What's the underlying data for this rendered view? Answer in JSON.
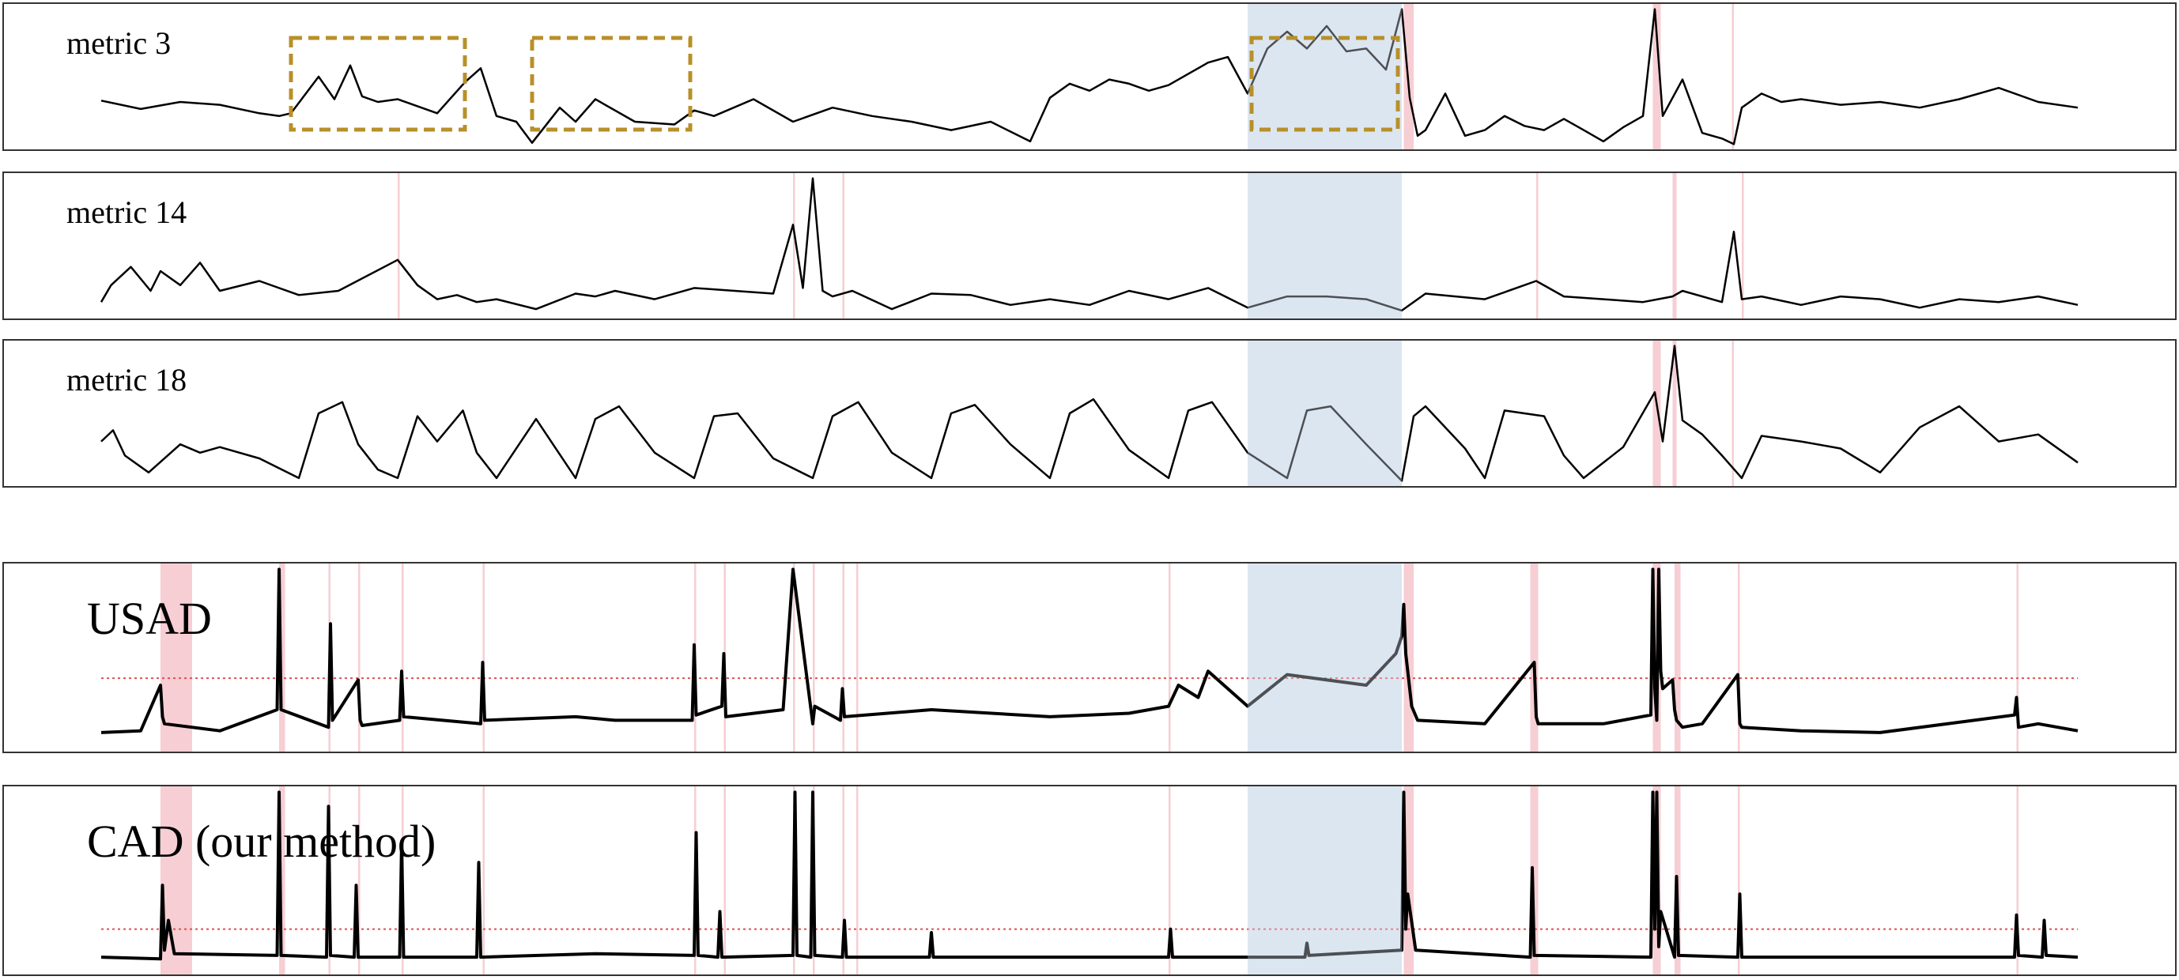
{
  "figure": {
    "shared_x_range": [
      0,
      1000
    ],
    "colors": {
      "series_line": "#000000",
      "expert_band": "#dce6f2",
      "anomaly_band": "#f4c5cb",
      "threshold_line": "#e05050",
      "highlight_box": "#b8902a",
      "panel_border": "#333333"
    },
    "legend": "none",
    "grid": false
  },
  "chart_data": [
    {
      "type": "line",
      "panel_label": "metric 3",
      "ylim": [
        0,
        1
      ],
      "expert_regions": [
        [
          580,
          658
        ]
      ],
      "anomaly_regions": [
        [
          659,
          664
        ],
        [
          785,
          789
        ],
        [
          825,
          826
        ]
      ],
      "highlight_boxes": [
        [
          96,
          184
        ],
        [
          218,
          298
        ],
        [
          582,
          656
        ]
      ],
      "series": [
        {
          "x": [
            0,
            20,
            40,
            60,
            80,
            90,
            96,
            110,
            118,
            126,
            132,
            140,
            150,
            170,
            184,
            192,
            200,
            210,
            218,
            232,
            240,
            250,
            270,
            290,
            300,
            310,
            330,
            350,
            370,
            390,
            410,
            430,
            450,
            470,
            480,
            490,
            500,
            510,
            520,
            530,
            540,
            550,
            560,
            570,
            580,
            590,
            600,
            610,
            620,
            630,
            640,
            650,
            658,
            662,
            666,
            670,
            680,
            690,
            700,
            710,
            720,
            730,
            740,
            750,
            760,
            770,
            780,
            786,
            790,
            800,
            810,
            820,
            826,
            830,
            840,
            850,
            860,
            880,
            900,
            920,
            940,
            960,
            980,
            1000
          ],
          "values": [
            0.33,
            0.27,
            0.32,
            0.3,
            0.24,
            0.22,
            0.24,
            0.5,
            0.34,
            0.58,
            0.36,
            0.32,
            0.34,
            0.24,
            0.46,
            0.56,
            0.22,
            0.18,
            0.03,
            0.28,
            0.18,
            0.34,
            0.18,
            0.16,
            0.26,
            0.22,
            0.34,
            0.18,
            0.28,
            0.22,
            0.18,
            0.12,
            0.18,
            0.04,
            0.35,
            0.45,
            0.4,
            0.48,
            0.45,
            0.4,
            0.44,
            0.52,
            0.6,
            0.64,
            0.38,
            0.7,
            0.82,
            0.7,
            0.86,
            0.68,
            0.7,
            0.55,
            0.98,
            0.35,
            0.08,
            0.12,
            0.38,
            0.08,
            0.12,
            0.22,
            0.15,
            0.12,
            0.2,
            0.12,
            0.04,
            0.14,
            0.22,
            0.98,
            0.22,
            0.48,
            0.1,
            0.06,
            0.02,
            0.28,
            0.38,
            0.32,
            0.34,
            0.3,
            0.32,
            0.28,
            0.34,
            0.42,
            0.32,
            0.28
          ]
        }
      ]
    },
    {
      "type": "line",
      "panel_label": "metric 14",
      "ylim": [
        0,
        1
      ],
      "expert_regions": [
        [
          580,
          658
        ]
      ],
      "anomaly_regions": [
        [
          150,
          151
        ],
        [
          350,
          351
        ],
        [
          375,
          376
        ],
        [
          726,
          727
        ],
        [
          795,
          797
        ],
        [
          830,
          831
        ]
      ],
      "series": [
        {
          "x": [
            0,
            5,
            15,
            25,
            30,
            40,
            50,
            60,
            80,
            100,
            120,
            150,
            160,
            170,
            180,
            190,
            200,
            220,
            240,
            250,
            260,
            280,
            300,
            340,
            350,
            355,
            360,
            365,
            370,
            380,
            400,
            420,
            440,
            460,
            480,
            500,
            520,
            540,
            560,
            580,
            600,
            620,
            640,
            658,
            670,
            700,
            726,
            740,
            760,
            780,
            795,
            800,
            820,
            826,
            830,
            840,
            860,
            880,
            900,
            920,
            940,
            960,
            980,
            1000
          ],
          "values": [
            0.1,
            0.22,
            0.35,
            0.18,
            0.32,
            0.22,
            0.38,
            0.18,
            0.25,
            0.15,
            0.18,
            0.4,
            0.22,
            0.12,
            0.15,
            0.1,
            0.12,
            0.05,
            0.16,
            0.14,
            0.18,
            0.12,
            0.2,
            0.16,
            0.65,
            0.2,
            0.98,
            0.18,
            0.14,
            0.18,
            0.05,
            0.16,
            0.15,
            0.08,
            0.12,
            0.08,
            0.18,
            0.12,
            0.2,
            0.06,
            0.14,
            0.14,
            0.12,
            0.04,
            0.16,
            0.12,
            0.25,
            0.14,
            0.12,
            0.1,
            0.14,
            0.18,
            0.1,
            0.6,
            0.12,
            0.14,
            0.08,
            0.14,
            0.12,
            0.06,
            0.12,
            0.1,
            0.14,
            0.08
          ]
        }
      ]
    },
    {
      "type": "line",
      "panel_label": "metric 18",
      "ylim": [
        0,
        1
      ],
      "expert_regions": [
        [
          580,
          658
        ]
      ],
      "anomaly_regions": [
        [
          785,
          789
        ],
        [
          795,
          797
        ],
        [
          825,
          826
        ]
      ],
      "series": [
        {
          "x": [
            0,
            6,
            12,
            24,
            40,
            50,
            60,
            80,
            100,
            110,
            122,
            130,
            140,
            150,
            160,
            170,
            183,
            190,
            200,
            220,
            240,
            250,
            262,
            280,
            300,
            310,
            322,
            340,
            360,
            370,
            383,
            400,
            420,
            430,
            442,
            460,
            480,
            490,
            502,
            520,
            540,
            550,
            562,
            580,
            600,
            610,
            622,
            640,
            658,
            664,
            670,
            690,
            700,
            710,
            730,
            740,
            750,
            770,
            786,
            790,
            796,
            800,
            810,
            820,
            830,
            840,
            860,
            880,
            900,
            920,
            940,
            960,
            980,
            1000
          ],
          "values": [
            0.3,
            0.38,
            0.2,
            0.08,
            0.28,
            0.22,
            0.26,
            0.18,
            0.04,
            0.5,
            0.58,
            0.28,
            0.1,
            0.04,
            0.48,
            0.3,
            0.52,
            0.22,
            0.04,
            0.46,
            0.04,
            0.46,
            0.55,
            0.22,
            0.04,
            0.48,
            0.5,
            0.18,
            0.04,
            0.48,
            0.58,
            0.22,
            0.04,
            0.5,
            0.56,
            0.28,
            0.04,
            0.5,
            0.6,
            0.24,
            0.04,
            0.52,
            0.58,
            0.22,
            0.04,
            0.52,
            0.55,
            0.28,
            0.02,
            0.48,
            0.55,
            0.25,
            0.04,
            0.52,
            0.48,
            0.2,
            0.04,
            0.26,
            0.65,
            0.3,
            0.98,
            0.45,
            0.35,
            0.2,
            0.04,
            0.34,
            0.3,
            0.25,
            0.08,
            0.4,
            0.55,
            0.3,
            0.35,
            0.15
          ]
        }
      ]
    },
    {
      "type": "line",
      "panel_label": "USAD",
      "ylim": [
        0,
        1
      ],
      "threshold": 0.36,
      "expert_regions": [
        [
          580,
          658
        ]
      ],
      "anomaly_regions": [
        [
          30,
          46
        ],
        [
          90,
          93
        ],
        [
          115,
          116
        ],
        [
          130,
          131
        ],
        [
          152,
          153
        ],
        [
          193,
          194
        ],
        [
          300,
          301
        ],
        [
          315,
          316
        ],
        [
          350,
          351
        ],
        [
          360,
          361
        ],
        [
          375,
          376
        ],
        [
          382,
          383
        ],
        [
          540,
          541
        ],
        [
          659,
          664
        ],
        [
          723,
          727
        ],
        [
          785,
          789
        ],
        [
          796,
          799
        ],
        [
          828,
          829
        ],
        [
          969,
          970
        ]
      ],
      "series": [
        {
          "x": [
            0,
            20,
            30,
            31,
            32,
            60,
            89,
            90,
            91,
            115,
            116,
            117,
            130,
            131,
            132,
            151,
            152,
            153,
            192,
            193,
            194,
            240,
            260,
            299,
            300,
            301,
            314,
            315,
            316,
            345,
            350,
            360,
            361,
            374,
            375,
            376,
            420,
            480,
            520,
            540,
            545,
            555,
            560,
            580,
            600,
            640,
            655,
            658,
            659,
            660,
            663,
            666,
            700,
            725,
            726,
            727,
            760,
            784,
            785,
            786,
            787,
            788,
            789,
            790,
            795,
            796,
            797,
            800,
            810,
            828,
            829,
            830,
            860,
            900,
            968,
            969,
            970,
            980,
            1000
          ],
          "values": [
            0.05,
            0.06,
            0.32,
            0.14,
            0.1,
            0.06,
            0.18,
            0.98,
            0.18,
            0.08,
            0.67,
            0.12,
            0.35,
            0.12,
            0.09,
            0.12,
            0.4,
            0.14,
            0.1,
            0.45,
            0.12,
            0.14,
            0.12,
            0.12,
            0.55,
            0.15,
            0.2,
            0.5,
            0.14,
            0.18,
            0.98,
            0.1,
            0.2,
            0.12,
            0.3,
            0.14,
            0.18,
            0.14,
            0.16,
            0.2,
            0.32,
            0.25,
            0.4,
            0.2,
            0.38,
            0.32,
            0.5,
            0.6,
            0.78,
            0.5,
            0.2,
            0.12,
            0.1,
            0.45,
            0.14,
            0.1,
            0.1,
            0.15,
            0.98,
            0.3,
            0.12,
            0.98,
            0.4,
            0.3,
            0.35,
            0.18,
            0.12,
            0.08,
            0.1,
            0.38,
            0.1,
            0.08,
            0.06,
            0.05,
            0.15,
            0.25,
            0.08,
            0.1,
            0.06
          ]
        }
      ]
    },
    {
      "type": "line",
      "panel_label": "CAD (our method)",
      "ylim": [
        0,
        1
      ],
      "threshold": 0.2,
      "expert_regions": [
        [
          580,
          658
        ]
      ],
      "anomaly_regions": [
        [
          30,
          46
        ],
        [
          90,
          93
        ],
        [
          115,
          116
        ],
        [
          130,
          131
        ],
        [
          152,
          153
        ],
        [
          193,
          194
        ],
        [
          300,
          301
        ],
        [
          315,
          316
        ],
        [
          350,
          351
        ],
        [
          360,
          361
        ],
        [
          375,
          376
        ],
        [
          382,
          383
        ],
        [
          540,
          541
        ],
        [
          659,
          664
        ],
        [
          723,
          727
        ],
        [
          785,
          789
        ],
        [
          796,
          799
        ],
        [
          828,
          829
        ],
        [
          969,
          970
        ]
      ],
      "series": [
        {
          "x": [
            0,
            30,
            31,
            32,
            34,
            37,
            89,
            90,
            91,
            114,
            115,
            116,
            128,
            129,
            130,
            151,
            152,
            153,
            190,
            191,
            192,
            250,
            300,
            301,
            302,
            312,
            313,
            314,
            350,
            351,
            352,
            359,
            360,
            361,
            375,
            376,
            377,
            419,
            420,
            421,
            540,
            541,
            542,
            609,
            610,
            611,
            658,
            659,
            660,
            661,
            665,
            723,
            724,
            725,
            784,
            785,
            786,
            787,
            788,
            789,
            796,
            797,
            798,
            828,
            829,
            830,
            968,
            969,
            970,
            982,
            983,
            984,
            1000
          ],
          "values": [
            0.04,
            0.03,
            0.45,
            0.08,
            0.25,
            0.06,
            0.05,
            0.98,
            0.05,
            0.04,
            0.9,
            0.05,
            0.04,
            0.45,
            0.04,
            0.04,
            0.7,
            0.04,
            0.04,
            0.58,
            0.04,
            0.06,
            0.05,
            0.75,
            0.05,
            0.04,
            0.3,
            0.04,
            0.05,
            0.98,
            0.05,
            0.04,
            0.98,
            0.05,
            0.04,
            0.25,
            0.04,
            0.04,
            0.18,
            0.04,
            0.04,
            0.2,
            0.04,
            0.04,
            0.12,
            0.05,
            0.08,
            0.98,
            0.2,
            0.4,
            0.08,
            0.04,
            0.55,
            0.05,
            0.04,
            0.98,
            0.2,
            0.98,
            0.1,
            0.3,
            0.04,
            0.5,
            0.05,
            0.04,
            0.4,
            0.04,
            0.04,
            0.28,
            0.05,
            0.04,
            0.25,
            0.05,
            0.04
          ]
        }
      ]
    }
  ]
}
